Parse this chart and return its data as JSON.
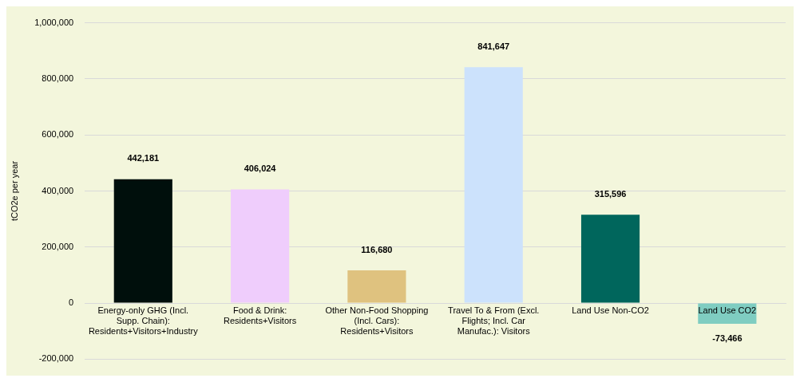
{
  "chart_data": {
    "type": "bar",
    "ylabel": "tCO2e per year",
    "categories": [
      "Energy-only GHG (Incl. Supp. Chain): Residents+Visitors+Industry",
      "Food & Drink: Residents+Visitors",
      "Other Non-Food Shopping (Incl. Cars): Residents+Visitors",
      "Travel To & From (Excl. Flights; Incl. Car Manufac.): Visitors",
      "Land Use Non-CO2",
      "Land Use CO2"
    ],
    "values": [
      442181,
      406024,
      116680,
      841647,
      315596,
      -73466
    ],
    "colors": [
      "#000f0c",
      "#efcdfc",
      "#dfc27f",
      "#cce2fc",
      "#00665c",
      "#7fcdc1"
    ],
    "value_labels": [
      "442,181",
      "406,024",
      "116,680",
      "841,647",
      "315,596",
      "-73,466"
    ],
    "ylim": [
      -200000,
      1000000
    ],
    "yticks": [
      {
        "value": -200000,
        "label": "-200,000"
      },
      0,
      {
        "value": 200000,
        "label": "200,000"
      },
      {
        "value": 400000,
        "label": "400,000"
      },
      {
        "value": 600000,
        "label": "600,000"
      },
      {
        "value": 800000,
        "label": "800,000"
      },
      {
        "value": 1000000,
        "label": "1,000,000"
      }
    ],
    "grid": "y",
    "legend": false
  }
}
